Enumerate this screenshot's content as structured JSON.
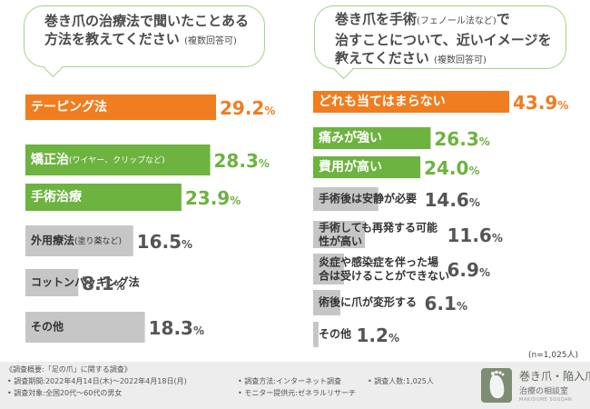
{
  "questions": {
    "left_q_line1": "巻き爪の治療法で聞いたことある",
    "left_q_line2": "方法を教えてください",
    "left_q_note": "(複数回答可)",
    "right_q_line1": "巻き爪を手術",
    "right_q_line1_note": "(フェノール法など)",
    "right_q_line1_tail": "で",
    "right_q_line2": "治すことについて、近いイメージを",
    "right_q_line3": "教えてください",
    "right_q_note": "(複数回答可)"
  },
  "chart_data": [
    {
      "type": "bar",
      "orientation": "horizontal",
      "title": "巻き爪の治療法で聞いたことある方法を教えてください",
      "unit": "%",
      "xlim": [
        0,
        35
      ],
      "categories": [
        {
          "label": "テーピング法",
          "note": "",
          "value": 29.2,
          "color": "#f07d1f",
          "label_inside": true
        },
        {
          "label": "矯正治",
          "note": "(ワイヤー、クリップなど)",
          "value": 28.3,
          "color": "#6cb33f",
          "label_inside": true
        },
        {
          "label": "手術治療",
          "note": "",
          "value": 23.9,
          "color": "#6cb33f",
          "label_inside": true
        },
        {
          "label": "外用療法",
          "note": "(塗り薬など)",
          "value": 16.5,
          "color": "#c6c6c6",
          "label_inside": false
        },
        {
          "label": "コットンパッキング法",
          "note": "",
          "value": 8.1,
          "color": "#c6c6c6",
          "label_inside": false
        },
        {
          "label": "その他",
          "note": "",
          "value": 18.3,
          "color": "#c6c6c6",
          "label_inside": false
        }
      ]
    },
    {
      "type": "bar",
      "orientation": "horizontal",
      "title": "巻き爪を手術で治すことについて、近いイメージを教えてください",
      "unit": "%",
      "xlim": [
        0,
        50
      ],
      "categories": [
        {
          "label": "どれも当てはまらない",
          "value": 43.9,
          "color": "#f07d1f",
          "label_inside": true
        },
        {
          "label": "痛みが強い",
          "value": 26.3,
          "color": "#6cb33f",
          "label_inside": true
        },
        {
          "label": "費用が高い",
          "value": 24.0,
          "color": "#6cb33f",
          "label_inside": true
        },
        {
          "label": "手術後は安静が必要",
          "value": 14.6,
          "color": "#c6c6c6",
          "label_inside": false
        },
        {
          "label": "手術しても再発する可能性が高い",
          "value": 11.6,
          "color": "#c6c6c6",
          "label_inside": false
        },
        {
          "label": "炎症や感染症を伴った場合は受けることができない",
          "value": 6.9,
          "color": "#c6c6c6",
          "label_inside": false
        },
        {
          "label": "術後に爪が変形する",
          "value": 6.1,
          "color": "#c6c6c6",
          "label_inside": false
        },
        {
          "label": "その他",
          "value": 1.2,
          "color": "#c6c6c6",
          "label_inside": false
        }
      ]
    }
  ],
  "sample_note": "(n=1,025人)",
  "footer": {
    "title": "《調査概要:「足の爪」に関する調査》",
    "period": "• 調査期間:2022年4月14日(木)〜2022年4月18日(月)",
    "method": "• 調査方法:インターネット調査",
    "people": "• 調査人数:1,025人",
    "target": "• 調査対象:全国20代〜60代の男女",
    "provider": "• モニター提供元:ゼネラルリサーチ"
  },
  "logo": {
    "name": "巻き爪・陥入爪",
    "sub": "治療の相談室",
    "tiny": "MAKIDUME SOUDAN"
  }
}
